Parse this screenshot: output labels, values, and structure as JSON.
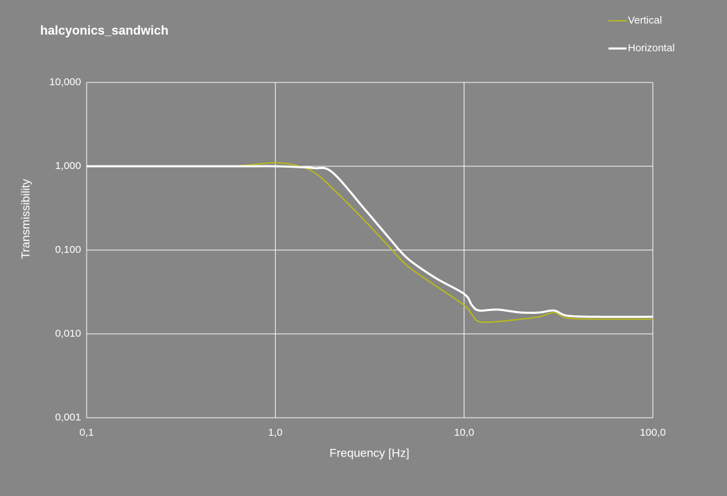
{
  "chart_data": {
    "type": "line",
    "title": "halcyonics_sandwich",
    "x_label": "Frequency  [Hz]",
    "y_label": "Transmissibility",
    "x": [
      0.1,
      0.5,
      0.7,
      1,
      1.3,
      1.6,
      2,
      3,
      4,
      5,
      7,
      10,
      11,
      12,
      15,
      20,
      25,
      30,
      35,
      50,
      100
    ],
    "series": [
      {
        "name": "Vertical",
        "color": "#b8b820",
        "values": [
          1,
          1,
          1.03,
          1.1,
          1.02,
          0.85,
          0.55,
          0.22,
          0.11,
          0.065,
          0.038,
          0.022,
          0.017,
          0.014,
          0.014,
          0.015,
          0.016,
          0.018,
          0.0155,
          0.015,
          0.015
        ]
      },
      {
        "name": "Horizontal",
        "color": "#ffffff",
        "values": [
          1,
          1,
          1,
          1,
          0.98,
          0.95,
          0.85,
          0.3,
          0.14,
          0.08,
          0.047,
          0.03,
          0.022,
          0.019,
          0.0195,
          0.018,
          0.018,
          0.019,
          0.0165,
          0.016,
          0.016
        ]
      }
    ],
    "xlim": [
      0.1,
      100
    ],
    "ylim": [
      0.001,
      10
    ],
    "xlog": true,
    "ylog": true,
    "grid": true,
    "legend": "top-right",
    "xticks": [
      {
        "value": 0.1,
        "label": "0,1"
      },
      {
        "value": 1,
        "label": "1,0"
      },
      {
        "value": 10,
        "label": "10,0"
      },
      {
        "value": 100,
        "label": "100,0"
      }
    ],
    "yticks": [
      {
        "value": 0.001,
        "label": "0,001"
      },
      {
        "value": 0.01,
        "label": "0,010"
      },
      {
        "value": 0.1,
        "label": "0,100"
      },
      {
        "value": 1,
        "label": "1,000"
      },
      {
        "value": 10,
        "label": "10,000"
      }
    ]
  }
}
